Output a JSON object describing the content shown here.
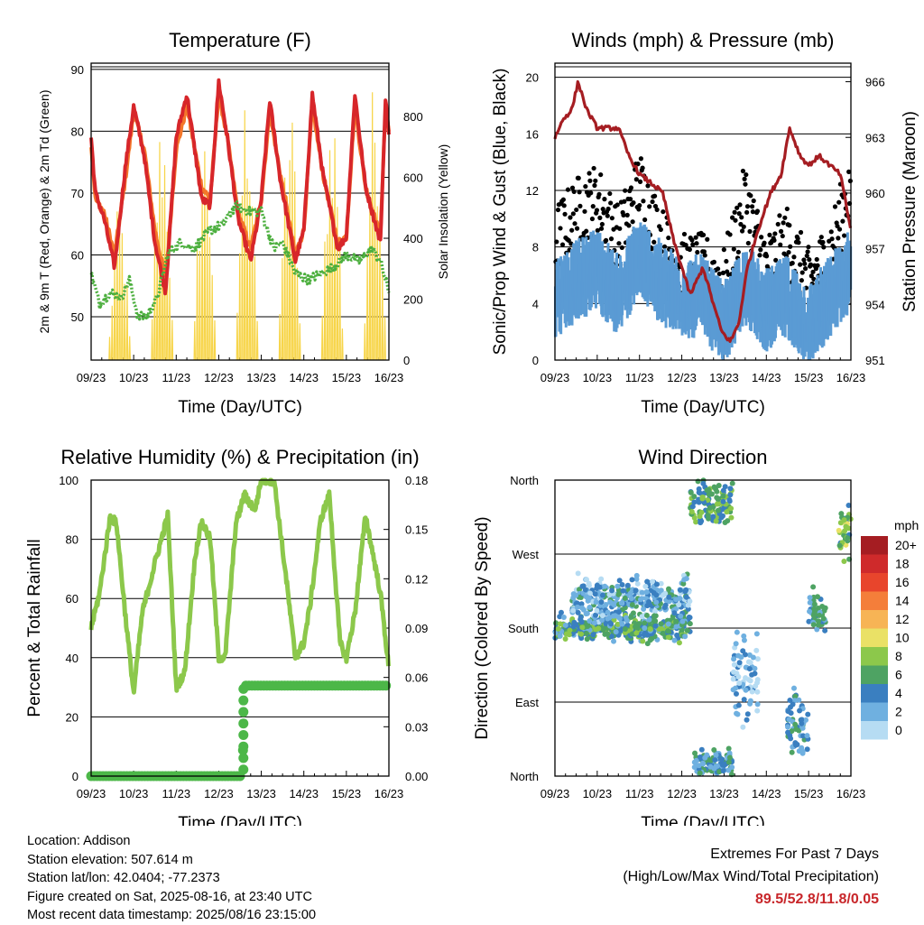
{
  "footer": {
    "location": "Location: Addison",
    "elevation": "Station elevation: 507.614 m",
    "latlon": "Station lat/lon: 42.0404; -77.2373",
    "created": "Figure created on Sat, 2025-08-16, at 23:40 UTC",
    "recent": "Most recent data timestamp: 2025/08/16 23:15:00"
  },
  "extremes": {
    "title": "Extremes For Past 7 Days",
    "subtitle": "(High/Low/Max Wind/Total Precipitation)",
    "values": "89.5/52.8/11.8/0.05"
  },
  "colors": {
    "red": "#d7262a",
    "orange": "#f4772a",
    "green": "#4caf3e",
    "yellow": "#f7d54a",
    "black": "#000000",
    "blue": "#5a9bd4",
    "maroon": "#a51d22",
    "lightgreen": "#8cc84b"
  },
  "chart_data": [
    {
      "type": "line",
      "title": "Temperature (F)",
      "xlabel": "Time (Day/UTC)",
      "ylabel": "2m & 9m T (Red, Orange) & 2m Td (Green)",
      "y2label": "Solar Insolation (Yellow)",
      "x_ticks": [
        "09/23",
        "10/23",
        "11/23",
        "12/23",
        "13/23",
        "14/23",
        "15/23",
        "16/23"
      ],
      "xlim": [
        0,
        7
      ],
      "ylim": [
        43,
        91
      ],
      "yticks": [
        50,
        60,
        70,
        80,
        90
      ],
      "y2lim": [
        0,
        975
      ],
      "y2ticks": [
        0,
        200,
        400,
        600,
        800
      ],
      "series": [
        {
          "name": "2m T",
          "axis": "left",
          "color": "#d7262a",
          "x": [
            0,
            0.1,
            0.3,
            0.55,
            0.8,
            1.0,
            1.25,
            1.5,
            1.75,
            2.0,
            2.25,
            2.6,
            2.8,
            3.0,
            3.2,
            3.45,
            3.75,
            4.0,
            4.2,
            4.45,
            4.8,
            5.0,
            5.2,
            5.45,
            5.8,
            6.0,
            6.2,
            6.45,
            6.8,
            6.92,
            7.0
          ],
          "y": [
            79,
            70,
            66,
            58,
            74,
            84,
            76,
            62,
            54,
            79,
            86,
            69,
            68,
            88,
            79,
            66,
            59,
            69,
            85,
            72,
            59,
            64,
            86,
            73,
            61,
            63,
            86,
            71,
            62,
            85,
            80
          ]
        },
        {
          "name": "9m T",
          "axis": "left",
          "color": "#f4772a",
          "x": [
            0,
            0.1,
            0.3,
            0.55,
            0.8,
            1.0,
            1.25,
            1.5,
            1.75,
            2.0,
            2.25,
            2.6,
            2.8,
            3.0,
            3.2,
            3.45,
            3.75,
            4.0,
            4.2,
            4.45,
            4.8,
            5.0,
            5.2,
            5.45,
            5.8,
            6.0,
            6.2,
            6.45,
            6.8,
            6.92,
            7.0
          ],
          "y": [
            78,
            69,
            67,
            60,
            72,
            83,
            77,
            64,
            56,
            77,
            84,
            71,
            69,
            86,
            79,
            67,
            61,
            69,
            83,
            73,
            60,
            64,
            84,
            73,
            62,
            63,
            84,
            71,
            63,
            84,
            80
          ]
        },
        {
          "name": "2m Td",
          "axis": "left",
          "color": "#4caf3e",
          "x": [
            0,
            0.2,
            0.45,
            0.7,
            0.9,
            1.1,
            1.3,
            1.55,
            1.8,
            2.1,
            2.4,
            2.8,
            3.1,
            3.4,
            3.7,
            4.0,
            4.3,
            4.5,
            4.8,
            5.1,
            5.4,
            5.7,
            6.0,
            6.3,
            6.6,
            6.8,
            7.0
          ],
          "y": [
            57,
            52,
            54,
            53,
            56,
            50,
            50,
            53,
            60,
            62,
            61,
            64,
            65,
            68,
            67,
            67,
            61,
            62,
            57,
            56,
            57,
            58,
            60,
            59,
            61,
            59,
            54
          ]
        },
        {
          "name": "Solar",
          "axis": "right",
          "color": "#f7d54a",
          "type": "diurnal",
          "peaks": [
            {
              "day": 0,
              "start": 0.42,
              "end": 0.95,
              "peak": 520
            },
            {
              "day": 1,
              "start": 1.42,
              "end": 1.95,
              "peak": 840
            },
            {
              "day": 2,
              "start": 2.42,
              "end": 2.95,
              "peak": 780
            },
            {
              "day": 3,
              "start": 3.42,
              "end": 3.95,
              "peak": 950
            },
            {
              "day": 4,
              "start": 4.42,
              "end": 4.95,
              "peak": 880
            },
            {
              "day": 5,
              "start": 5.42,
              "end": 5.95,
              "peak": 900
            },
            {
              "day": 6,
              "start": 6.42,
              "end": 6.95,
              "peak": 960
            }
          ]
        }
      ]
    },
    {
      "type": "line",
      "title": "Winds (mph) & Pressure (mb)",
      "xlabel": "Time (Day/UTC)",
      "ylabel": "Sonic/Prop Wind & Gust (Blue, Black)",
      "y2label": "Station Pressure (Maroon)",
      "x_ticks": [
        "09/23",
        "10/23",
        "11/23",
        "12/23",
        "13/23",
        "14/23",
        "15/23",
        "16/23"
      ],
      "xlim": [
        0,
        7
      ],
      "ylim": [
        0,
        21
      ],
      "yticks": [
        0,
        4,
        8,
        12,
        16,
        20
      ],
      "y2lim": [
        951,
        967
      ],
      "y2ticks": [
        951,
        954,
        957,
        960,
        963,
        966
      ],
      "series": [
        {
          "name": "Wind",
          "axis": "left",
          "color": "#5a9bd4",
          "type": "band",
          "x": [
            0,
            0.5,
            1.0,
            1.5,
            2.0,
            2.5,
            3.0,
            3.5,
            4.0,
            4.5,
            5.0,
            5.5,
            6.0,
            6.5,
            7.0
          ],
          "y": [
            4,
            5,
            6,
            4,
            7,
            5,
            4,
            4,
            2,
            5,
            3,
            4,
            2,
            4,
            6
          ]
        },
        {
          "name": "Gust",
          "axis": "left",
          "color": "#000000",
          "type": "dots",
          "x": [
            0,
            0.5,
            1.0,
            1.5,
            2.0,
            2.5,
            3.0,
            3.5,
            4.0,
            4.5,
            5.0,
            5.5,
            6.0,
            6.5,
            7.0
          ],
          "y": [
            8,
            10,
            11,
            8,
            12,
            8,
            6,
            6,
            5,
            11,
            6,
            8,
            5,
            7,
            12
          ]
        },
        {
          "name": "Pressure",
          "axis": "right",
          "color": "#a51d22",
          "x": [
            0,
            0.2,
            0.4,
            0.55,
            0.75,
            1.0,
            1.25,
            1.5,
            1.75,
            2.0,
            2.3,
            2.55,
            2.8,
            3.0,
            3.2,
            3.5,
            3.75,
            3.95,
            4.15,
            4.35,
            4.55,
            4.8,
            5.1,
            5.35,
            5.55,
            5.8,
            6.0,
            6.25,
            6.5,
            6.75,
            7.0
          ],
          "y": [
            963,
            964,
            964.5,
            966,
            964.5,
            963.5,
            963.5,
            963.5,
            962,
            961,
            960.5,
            960,
            957.5,
            956,
            954.5,
            956,
            954,
            952.5,
            952,
            953,
            956,
            958,
            960,
            961,
            963.5,
            962,
            961.5,
            962,
            961.5,
            961,
            958
          ]
        }
      ]
    },
    {
      "type": "line",
      "title": "Relative Humidity (%) & Precipitation (in)",
      "xlabel": "Time (Day/UTC)",
      "ylabel": "Percent & Total Rainfall",
      "x_ticks": [
        "09/23",
        "10/23",
        "11/23",
        "12/23",
        "13/23",
        "14/23",
        "15/23",
        "16/23"
      ],
      "xlim": [
        0,
        7
      ],
      "ylim": [
        0,
        100
      ],
      "yticks": [
        0,
        20,
        40,
        60,
        80,
        100
      ],
      "y2lim": [
        0,
        0.18
      ],
      "y2ticks": [
        "0.00",
        "0.03",
        "0.06",
        "0.09",
        "0.12",
        "0.15",
        "0.18"
      ],
      "series": [
        {
          "name": "RH",
          "axis": "left",
          "color": "#8cc84b",
          "x": [
            0,
            0.2,
            0.45,
            0.6,
            0.8,
            1.0,
            1.2,
            1.5,
            1.8,
            2.0,
            2.2,
            2.45,
            2.6,
            2.8,
            3.0,
            3.15,
            3.4,
            3.6,
            3.85,
            4.0,
            4.3,
            4.6,
            4.8,
            5.0,
            5.15,
            5.4,
            5.6,
            5.85,
            6.0,
            6.2,
            6.45,
            6.8,
            7.0
          ],
          "y": [
            50,
            62,
            88,
            85,
            55,
            28,
            55,
            72,
            88,
            30,
            35,
            75,
            86,
            80,
            40,
            40,
            85,
            95,
            90,
            100,
            100,
            65,
            40,
            45,
            58,
            87,
            95,
            45,
            40,
            55,
            88,
            62,
            36
          ]
        },
        {
          "name": "Precip",
          "axis": "right",
          "color": "#4cb748",
          "type": "step",
          "x": [
            0,
            3.55,
            3.55,
            3.62,
            3.62,
            7.0
          ],
          "y": [
            0.0,
            0.0,
            0.01,
            0.03,
            0.055,
            0.055
          ]
        }
      ]
    },
    {
      "type": "scatter",
      "title": "Wind Direction",
      "xlabel": "Time (Day/UTC)",
      "ylabel": "Direction (Colored By Speed)",
      "x_ticks": [
        "09/23",
        "10/23",
        "11/23",
        "12/23",
        "13/23",
        "14/23",
        "15/23",
        "16/23"
      ],
      "xlim": [
        0,
        7
      ],
      "y_categories": [
        "North",
        "East",
        "South",
        "West",
        "North"
      ],
      "ylim": [
        0,
        360
      ],
      "legend_title": "mph",
      "legend_labels": [
        "20+",
        "18",
        "16",
        "14",
        "12",
        "10",
        "8",
        "6",
        "4",
        "2",
        "0"
      ],
      "legend_colors": [
        "#a51d22",
        "#cf2a2b",
        "#e8452c",
        "#f47e3a",
        "#f7b455",
        "#eae166",
        "#8cc84b",
        "#4ea363",
        "#3a7fc0",
        "#6fb0e0",
        "#b6dcf3"
      ],
      "clusters": [
        {
          "x0": 0,
          "x1": 3.2,
          "ymid": 180,
          "spread": 14,
          "speed": 5
        },
        {
          "x0": 0.4,
          "x1": 3.2,
          "ymid": 215,
          "spread": 25,
          "speed": 3
        },
        {
          "x0": 3.2,
          "x1": 4.2,
          "ymid": 330,
          "spread": 28,
          "speed": 6
        },
        {
          "x0": 3.3,
          "x1": 4.2,
          "ymid": 15,
          "spread": 15,
          "speed": 4
        },
        {
          "x0": 4.2,
          "x1": 4.8,
          "ymid": 120,
          "spread": 45,
          "speed": 2
        },
        {
          "x0": 5.5,
          "x1": 6.0,
          "ymid": 60,
          "spread": 35,
          "speed": 4
        },
        {
          "x0": 6.0,
          "x1": 6.4,
          "ymid": 200,
          "spread": 25,
          "speed": 4
        },
        {
          "x0": 6.7,
          "x1": 7.0,
          "ymid": 300,
          "spread": 30,
          "speed": 7
        }
      ]
    }
  ]
}
